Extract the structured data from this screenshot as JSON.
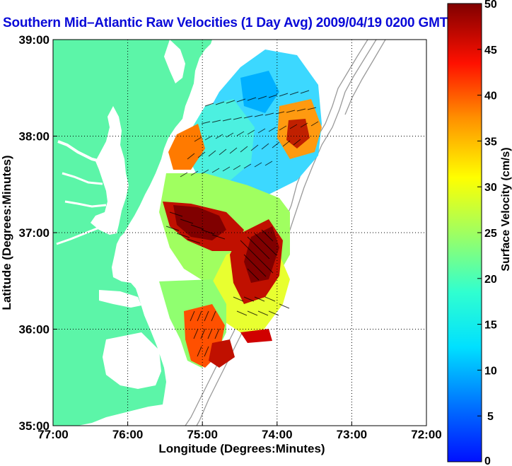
{
  "title": "Southern Mid–Atlantic Raw Velocities (1 Day Avg) 2009/04/19 0200 GMT",
  "axes": {
    "x_label": "Longitude (Degrees:Minutes)",
    "y_label": "Latitude (Degrees:Minutes)",
    "x_ticks": [
      "77:00",
      "76:00",
      "75:00",
      "74:00",
      "73:00",
      "72:00"
    ],
    "y_ticks": [
      "39:00",
      "38:00",
      "37:00",
      "36:00",
      "35:00"
    ],
    "lon_range": [
      -77,
      -72
    ],
    "lat_range": [
      35,
      39
    ]
  },
  "colorbar": {
    "label": "Surface Velocity (cm/s)",
    "ticks": [
      "50",
      "45",
      "40",
      "35",
      "30",
      "25",
      "20",
      "15",
      "10",
      "5",
      "0"
    ],
    "range": [
      0,
      50
    ]
  },
  "colors": {
    "land": "#5cf5a8",
    "title": "#0a0ad8",
    "grid": "#000000",
    "bathymetry": "#9a9a9a"
  }
}
